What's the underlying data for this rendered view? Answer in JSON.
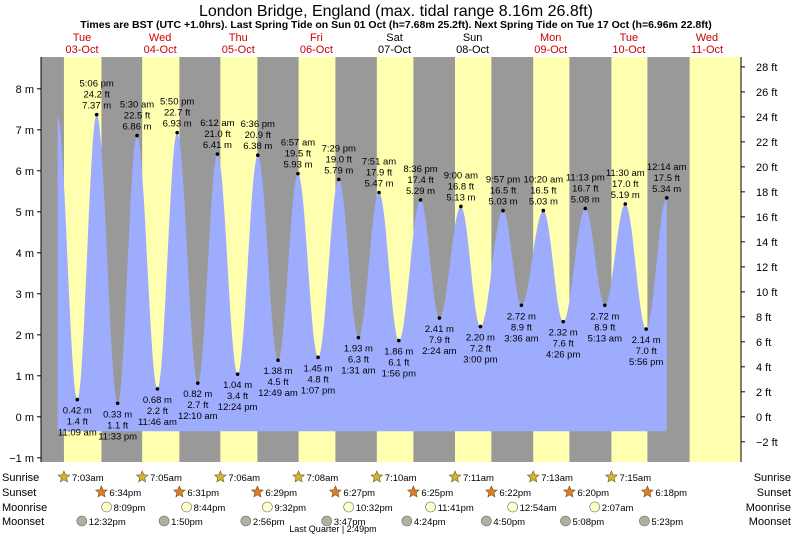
{
  "chart_data": {
    "type": "area",
    "title": "London Bridge, England (max. tidal range 8.16m 26.8ft)",
    "subtitle": "Times are BST (UTC +1.0hrs). Last Spring Tide on Sun 01 Oct (h=7.68m 25.2ft). Next Spring Tide on Tue 17 Oct (h=6.96m 22.8ft)",
    "ylabel_left": "m",
    "ylabel_right": "ft",
    "ylim_m": [
      -1.1,
      8.6
    ],
    "left_ticks": [
      "−1 m",
      "0 m",
      "1 m",
      "2 m",
      "3 m",
      "4 m",
      "5 m",
      "6 m",
      "7 m",
      "8 m"
    ],
    "right_ticks": [
      "−2 ft",
      "0 ft",
      "2 ft",
      "4 ft",
      "6 ft",
      "8 ft",
      "10 ft",
      "12 ft",
      "14 ft",
      "16 ft",
      "18 ft",
      "20 ft",
      "22 ft",
      "24 ft",
      "26 ft",
      "28 ft"
    ],
    "x_unit": "hours from 00:00 Tue 03-Oct",
    "days": [
      {
        "dow": "Tue",
        "date": "03-Oct",
        "weekend": false
      },
      {
        "dow": "Wed",
        "date": "04-Oct",
        "weekend": false
      },
      {
        "dow": "Thu",
        "date": "05-Oct",
        "weekend": false
      },
      {
        "dow": "Fri",
        "date": "06-Oct",
        "weekend": false
      },
      {
        "dow": "Sat",
        "date": "07-Oct",
        "weekend": true
      },
      {
        "dow": "Sun",
        "date": "08-Oct",
        "weekend": true
      },
      {
        "dow": "Mon",
        "date": "09-Oct",
        "weekend": false
      },
      {
        "dow": "Tue",
        "date": "10-Oct",
        "weekend": false
      },
      {
        "dow": "Wed",
        "date": "11-Oct",
        "weekend": false
      }
    ],
    "tides": [
      {
        "type": "low",
        "hours": 11.15,
        "h": 0.42,
        "time": "11:09 am",
        "ft": "1.4 ft",
        "m": "0.42 m"
      },
      {
        "type": "high",
        "hours": 17.1,
        "h": 7.37,
        "time": "5:06 pm",
        "ft": "24.2 ft",
        "m": "7.37 m"
      },
      {
        "type": "low",
        "hours": 23.55,
        "h": 0.33,
        "time": "11:33 pm",
        "ft": "1.1 ft",
        "m": "0.33 m"
      },
      {
        "type": "high",
        "hours": 29.5,
        "h": 6.86,
        "time": "5:30 am",
        "ft": "22.5 ft",
        "m": "6.86 m"
      },
      {
        "type": "low",
        "hours": 35.77,
        "h": 0.68,
        "time": "11:46 am",
        "ft": "2.2 ft",
        "m": "0.68 m"
      },
      {
        "type": "high",
        "hours": 41.83,
        "h": 6.93,
        "time": "5:50 pm",
        "ft": "22.7 ft",
        "m": "6.93 m"
      },
      {
        "type": "low",
        "hours": 48.17,
        "h": 0.82,
        "time": "12:10 am",
        "ft": "2.7 ft",
        "m": "0.82 m"
      },
      {
        "type": "high",
        "hours": 54.2,
        "h": 6.41,
        "time": "6:12 am",
        "ft": "21.0 ft",
        "m": "6.41 m"
      },
      {
        "type": "low",
        "hours": 60.4,
        "h": 1.04,
        "time": "12:24 pm",
        "ft": "3.4 ft",
        "m": "1.04 m"
      },
      {
        "type": "high",
        "hours": 66.6,
        "h": 6.38,
        "time": "6:36 pm",
        "ft": "20.9 ft",
        "m": "6.38 m"
      },
      {
        "type": "low",
        "hours": 72.82,
        "h": 1.38,
        "time": "12:49 am",
        "ft": "4.5 ft",
        "m": "1.38 m"
      },
      {
        "type": "high",
        "hours": 78.95,
        "h": 5.93,
        "time": "6:57 am",
        "ft": "19.5 ft",
        "m": "5.93 m"
      },
      {
        "type": "low",
        "hours": 85.12,
        "h": 1.45,
        "time": "1:07 pm",
        "ft": "4.8 ft",
        "m": "1.45 m"
      },
      {
        "type": "high",
        "hours": 91.48,
        "h": 5.79,
        "time": "7:29 pm",
        "ft": "19.0 ft",
        "m": "5.79 m"
      },
      {
        "type": "low",
        "hours": 97.52,
        "h": 1.93,
        "time": "1:31 am",
        "ft": "6.3 ft",
        "m": "1.93 m"
      },
      {
        "type": "high",
        "hours": 103.85,
        "h": 5.47,
        "time": "7:51 am",
        "ft": "17.9 ft",
        "m": "5.47 m"
      },
      {
        "type": "low",
        "hours": 109.93,
        "h": 1.86,
        "time": "1:56 pm",
        "ft": "6.1 ft",
        "m": "1.86 m"
      },
      {
        "type": "high",
        "hours": 116.6,
        "h": 5.29,
        "time": "8:36 pm",
        "ft": "17.4 ft",
        "m": "5.29 m"
      },
      {
        "type": "low",
        "hours": 122.4,
        "h": 2.41,
        "time": "2:24 am",
        "ft": "7.9 ft",
        "m": "2.41 m"
      },
      {
        "type": "high",
        "hours": 129.0,
        "h": 5.13,
        "time": "9:00 am",
        "ft": "16.8 ft",
        "m": "5.13 m"
      },
      {
        "type": "low",
        "hours": 135.0,
        "h": 2.2,
        "time": "3:00 pm",
        "ft": "7.2 ft",
        "m": "2.20 m"
      },
      {
        "type": "high",
        "hours": 141.95,
        "h": 5.03,
        "time": "9:57 pm",
        "ft": "16.5 ft",
        "m": "5.03 m"
      },
      {
        "type": "low",
        "hours": 147.6,
        "h": 2.72,
        "time": "3:36 am",
        "ft": "8.9 ft",
        "m": "2.72 m"
      },
      {
        "type": "high",
        "hours": 154.33,
        "h": 5.03,
        "time": "10:20 am",
        "ft": "16.5 ft",
        "m": "5.03 m"
      },
      {
        "type": "low",
        "hours": 160.43,
        "h": 2.32,
        "time": "4:26 pm",
        "ft": "7.6 ft",
        "m": "2.32 m"
      },
      {
        "type": "high",
        "hours": 167.22,
        "h": 5.08,
        "time": "11:13 pm",
        "ft": "16.7 ft",
        "m": "5.08 m"
      },
      {
        "type": "low",
        "hours": 173.22,
        "h": 2.72,
        "time": "5:13 am",
        "ft": "8.9 ft",
        "m": "2.72 m"
      },
      {
        "type": "high",
        "hours": 179.5,
        "h": 5.19,
        "time": "11:30 am",
        "ft": "17.0 ft",
        "m": "5.19 m"
      },
      {
        "type": "low",
        "hours": 185.93,
        "h": 2.14,
        "time": "5:56 pm",
        "ft": "7.0 ft",
        "m": "2.14 m"
      },
      {
        "type": "high",
        "hours": 192.23,
        "h": 5.34,
        "time": "12:14 am",
        "ft": "17.5 ft",
        "m": "5.34 m"
      }
    ],
    "sun_moon": {
      "row_labels": [
        "Sunrise",
        "Sunset",
        "Moonrise",
        "Moonset"
      ],
      "sunrise": [
        "7:03am",
        "7:05am",
        "7:06am",
        "7:08am",
        "7:10am",
        "7:11am",
        "7:13am",
        "7:15am"
      ],
      "sunset": [
        "6:34pm",
        "6:31pm",
        "6:29pm",
        "6:27pm",
        "6:25pm",
        "6:22pm",
        "6:20pm",
        "6:18pm"
      ],
      "moonrise": [
        "8:09pm",
        "8:44pm",
        "9:32pm",
        "10:32pm",
        "11:41pm",
        "12:54am",
        "2:07am"
      ],
      "moonset": [
        "12:32pm",
        "1:50pm",
        "2:56pm",
        "3:47pm",
        "4:24pm",
        "4:50pm",
        "5:08pm",
        "5:23pm"
      ],
      "moon_phase": "Last Quarter | 2:49pm"
    },
    "colors": {
      "night": "#999999",
      "day": "#ffffb0",
      "water": "#9eacfe",
      "weekday_label": "#cc0000",
      "sunrise_star": "#d4b537",
      "sunset_star": "#e07a2a",
      "moonrise": "#ffffcc",
      "moonset": "#b0b0a0"
    }
  }
}
